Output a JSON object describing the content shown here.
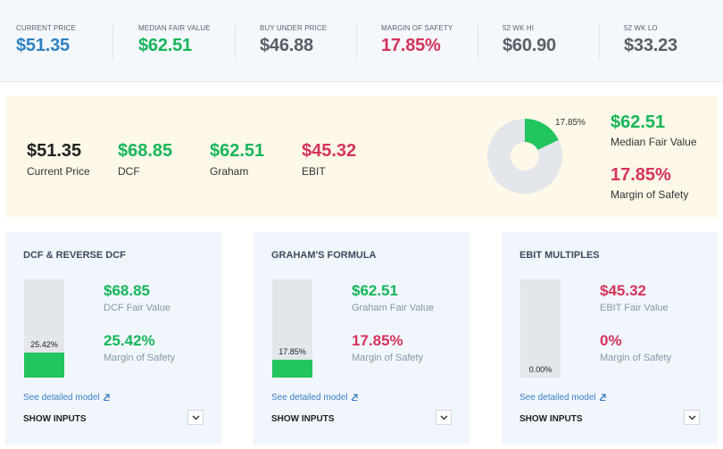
{
  "colors": {
    "green": "#16b65a",
    "red": "#d6335b",
    "blue": "#2f82c3",
    "grey": "#5a5f66",
    "donut_track": "#e3e6ea",
    "bar_fill": "#22c55e"
  },
  "stats": [
    {
      "label": "CURRENT PRICE",
      "value": "$51.35"
    },
    {
      "label": "MEDIAN FAIR VALUE",
      "value": "$62.51"
    },
    {
      "label": "BUY UNDER PRICE",
      "value": "$46.88"
    },
    {
      "label": "MARGIN OF SAFETY",
      "value": "17.85%"
    },
    {
      "label": "52 WK HI",
      "value": "$60.90"
    },
    {
      "label": "52 WK LO",
      "value": "$33.23"
    }
  ],
  "summary": {
    "items": [
      {
        "value": "$51.35",
        "label": "Current Price"
      },
      {
        "value": "$68.85",
        "label": "DCF"
      },
      {
        "value": "$62.51",
        "label": "Graham"
      },
      {
        "value": "$45.32",
        "label": "EBIT"
      }
    ],
    "donut": {
      "fraction": 0.1785,
      "label": "17.85%"
    },
    "median_fair_value": {
      "value": "$62.51",
      "label": "Median Fair Value"
    },
    "margin_of_safety": {
      "value": "17.85%",
      "label": "Margin of Safety"
    }
  },
  "cards": [
    {
      "title": "DCF & REVERSE DCF",
      "bar": {
        "fraction": 0.2542,
        "label": "25.42%"
      },
      "fair_value": "$68.85",
      "fair_value_label": "DCF Fair Value",
      "margin": "25.42%",
      "margin_label": "Margin of Safety",
      "link": "See detailed model",
      "show_inputs": "SHOW INPUTS"
    },
    {
      "title": "GRAHAM'S FORMULA",
      "bar": {
        "fraction": 0.1785,
        "label": "17.85%"
      },
      "fair_value": "$62.51",
      "fair_value_label": "Graham Fair Value",
      "margin": "17.85%",
      "margin_label": "Margin of Safety",
      "link": "See detailed model",
      "show_inputs": "SHOW INPUTS"
    },
    {
      "title": "EBIT MULTIPLES",
      "bar": {
        "fraction": 0,
        "label": "0.00%"
      },
      "fair_value": "$45.32",
      "fair_value_label": "EBIT Fair Value",
      "margin": "0%",
      "margin_label": "Margin of Safety",
      "link": "See detailed model",
      "show_inputs": "SHOW INPUTS"
    }
  ]
}
